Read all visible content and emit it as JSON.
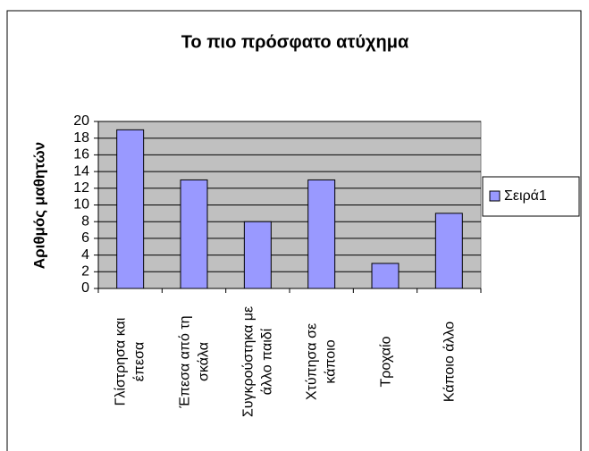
{
  "chart_data": {
    "type": "bar",
    "title": "Το πιο πρόσφατο ατύχημα",
    "y_label": "Αριθμός μαθητών",
    "categories": [
      "Γλίστρησα και έπεσα",
      "Έπεσα από τη σκάλα",
      "Συγκρούστηκα με άλλο παιδί",
      "Χτύπησα σε κάποιο",
      "Τροχαίο",
      "Κάποιο άλλο"
    ],
    "series": [
      {
        "name": "Σειρά1",
        "color": "#9999ff",
        "values": [
          19,
          13,
          8,
          13,
          3,
          9
        ]
      }
    ],
    "ylim": [
      0,
      20
    ],
    "yticks": [
      0,
      2,
      4,
      6,
      8,
      10,
      12,
      14,
      16,
      18,
      20
    ],
    "grid": true,
    "legend": "right"
  }
}
